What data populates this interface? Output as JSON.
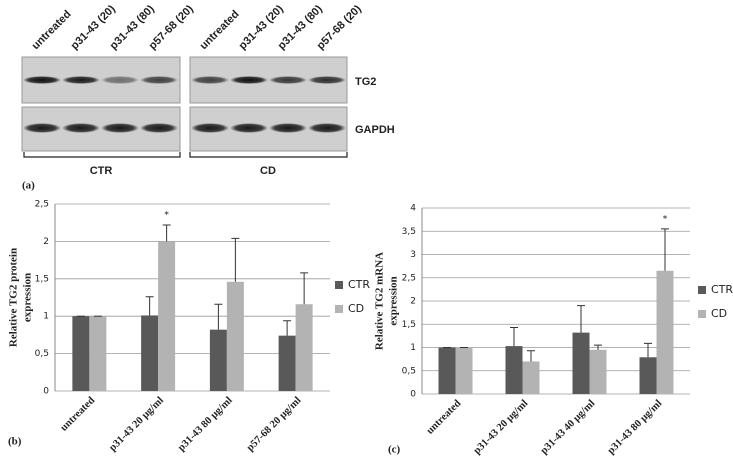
{
  "blot": {
    "lanes": [
      "untreated",
      "p31-43 (20)",
      "p31-43 (80)",
      "p57-68 (20)"
    ],
    "rows": [
      "TG2",
      "GAPDH"
    ],
    "groups": [
      "CTR",
      "CD"
    ],
    "panel_label": "(a)"
  },
  "chart_data": [
    {
      "type": "bar",
      "panel_label": "(b)",
      "ylabel": [
        "Relative TG2 protein",
        "expression"
      ],
      "categories": [
        "untreated",
        "p31-43 20 μg/ml",
        "p31-43 80 μg/ml",
        "p57-68 20 μg/ml"
      ],
      "series": [
        {
          "name": "CTR",
          "color": "#595959",
          "values": [
            1,
            1.01,
            0.82,
            0.74
          ],
          "errors": [
            0,
            0.25,
            0.34,
            0.2
          ]
        },
        {
          "name": "CD",
          "color": "#b3b3b3",
          "values": [
            1,
            2.0,
            1.46,
            1.16
          ],
          "errors": [
            0,
            0.22,
            0.58,
            0.42
          ]
        }
      ],
      "ylim": [
        0,
        2.5
      ],
      "yticks": [
        0,
        {
          "value": 0.5,
          "label": "0,5"
        },
        1,
        {
          "value": 1.5,
          "label": "1,5"
        },
        2,
        {
          "value": 2.5,
          "label": "2,5"
        }
      ],
      "grid": true,
      "legend": "right",
      "annotations": [
        "*"
      ]
    },
    {
      "type": "bar",
      "panel_label": "(c)",
      "ylabel": [
        "Relative TG2 mRNA",
        "expression"
      ],
      "categories": [
        "untreated",
        "p31-43 20 μg/ml",
        "p31-43 40 μg/ml",
        "p31-43 80 μg/ml"
      ],
      "series": [
        {
          "name": "CTR",
          "color": "#595959",
          "values": [
            1,
            1.03,
            1.32,
            0.79
          ],
          "errors": [
            0,
            0.4,
            0.58,
            0.3
          ]
        },
        {
          "name": "CD",
          "color": "#b3b3b3",
          "values": [
            1,
            0.7,
            0.95,
            2.65
          ],
          "errors": [
            0,
            0.23,
            0.1,
            0.9
          ]
        }
      ],
      "ylim": [
        0,
        4
      ],
      "yticks": [
        0,
        {
          "value": 0.5,
          "label": "0,5"
        },
        1,
        {
          "value": 1.5,
          "label": "1,5"
        },
        2,
        {
          "value": 2.5,
          "label": "2,5"
        },
        3,
        {
          "value": 3.5,
          "label": "3,5"
        },
        4
      ],
      "grid": true,
      "legend": "right",
      "annotations": [
        "*"
      ]
    }
  ]
}
